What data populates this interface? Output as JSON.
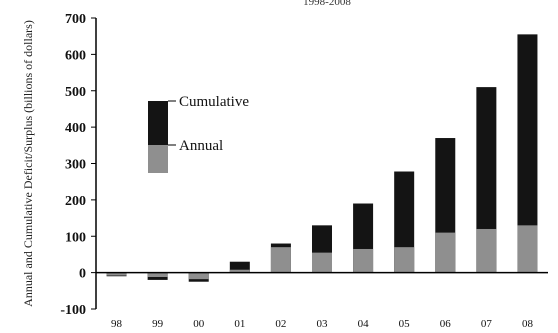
{
  "chart_data": {
    "type": "bar",
    "title": "1998-2008",
    "ylabel": "Annual and Cumulative Deficit/Surplus (billions of dollars)",
    "xlabel": "",
    "categories": [
      "98",
      "99",
      "00",
      "01",
      "02",
      "03",
      "04",
      "05",
      "06",
      "07",
      "08"
    ],
    "series": [
      {
        "name": "Annual",
        "values": [
          -8,
          -12,
          -18,
          8,
          70,
          55,
          65,
          70,
          110,
          120,
          130
        ]
      },
      {
        "name": "Cumulative",
        "values": [
          -10,
          -20,
          -25,
          30,
          80,
          130,
          190,
          278,
          370,
          510,
          655
        ]
      }
    ],
    "ylim": [
      -100,
      700
    ],
    "yticks": [
      -100,
      0,
      100,
      200,
      300,
      400,
      500,
      600,
      700
    ],
    "grid": false,
    "legend_position": "left",
    "colors": {
      "cumulative": "#141414",
      "annual": "#8f8f8f",
      "axis": "#000000"
    }
  }
}
